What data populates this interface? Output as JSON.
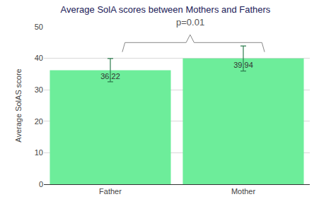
{
  "chart_data": {
    "type": "bar",
    "title": "Average SolA scores between Mothers and Fathers",
    "y_label": "Average SolAS score",
    "categories": [
      "Father",
      "Mother"
    ],
    "values": [
      36.22,
      39.94
    ],
    "errors": [
      3.7,
      4
    ],
    "color": "#6ded9a",
    "data_labels": true,
    "annotations": [
      "p=0.01"
    ],
    "ylim": [
      0,
      50
    ],
    "yticks": [
      0,
      10,
      20,
      30,
      40,
      50
    ],
    "grid": true
  }
}
